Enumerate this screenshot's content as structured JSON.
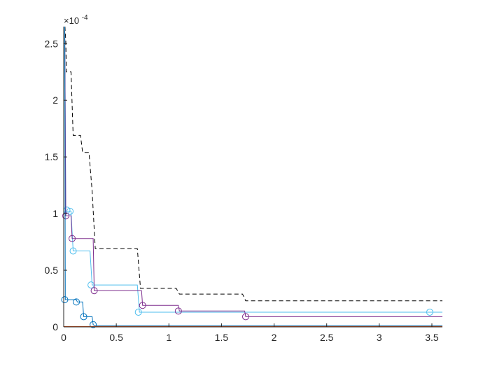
{
  "chart_data": {
    "type": "line",
    "title": "",
    "xlabel": "",
    "ylabel": "",
    "xlim": [
      0,
      3.6
    ],
    "ylim": [
      0,
      2.65
    ],
    "xticks": [
      0,
      0.5,
      1,
      1.5,
      2,
      2.5,
      3,
      3.5
    ],
    "xtick_labels": [
      "0",
      "0.5",
      "1",
      "1.5",
      "2",
      "2.5",
      "3",
      "3.5"
    ],
    "yticks": [
      0,
      0.5,
      1,
      1.5,
      2,
      2.5
    ],
    "ytick_labels": [
      "0",
      "0.5",
      "1",
      "1.5",
      "2",
      "2.5"
    ],
    "y_multiplier": {
      "base": "×10",
      "exponent": "-4"
    },
    "grid": false,
    "legend": "none",
    "series": [
      {
        "style": "dashed",
        "color": "#000000",
        "points": [
          [
            0.012,
            2.65
          ],
          [
            0.02,
            2.52
          ],
          [
            0.025,
            2.25
          ],
          [
            0.07,
            2.25
          ],
          [
            0.09,
            1.69
          ],
          [
            0.16,
            1.69
          ],
          [
            0.18,
            1.54
          ],
          [
            0.24,
            1.54
          ],
          [
            0.27,
            1.2
          ],
          [
            0.3,
            0.69
          ],
          [
            0.7,
            0.69
          ],
          [
            0.73,
            0.34
          ],
          [
            1.07,
            0.34
          ],
          [
            1.1,
            0.29
          ],
          [
            1.7,
            0.29
          ],
          [
            1.73,
            0.23
          ],
          [
            3.6,
            0.23
          ]
        ],
        "markers": []
      },
      {
        "style": "solid",
        "color": "#4DBEEE",
        "points": [
          [
            0.01,
            2.65
          ],
          [
            0.02,
            1.02
          ],
          [
            0.07,
            1.02
          ],
          [
            0.09,
            0.67
          ],
          [
            0.25,
            0.67
          ],
          [
            0.27,
            0.37
          ],
          [
            0.7,
            0.37
          ],
          [
            0.72,
            0.13
          ],
          [
            3.6,
            0.13
          ]
        ],
        "markers": [
          [
            0.03,
            1.03
          ],
          [
            0.06,
            1.02
          ],
          [
            0.09,
            0.67
          ],
          [
            0.26,
            0.37
          ],
          [
            0.71,
            0.13
          ],
          [
            3.48,
            0.13
          ]
        ]
      },
      {
        "style": "solid",
        "color": "#7E2F8E",
        "points": [
          [
            0.01,
            2.65
          ],
          [
            0.02,
            0.98
          ],
          [
            0.07,
            0.98
          ],
          [
            0.08,
            0.78
          ],
          [
            0.28,
            0.78
          ],
          [
            0.29,
            0.32
          ],
          [
            0.74,
            0.32
          ],
          [
            0.75,
            0.19
          ],
          [
            1.09,
            0.19
          ],
          [
            1.1,
            0.14
          ],
          [
            1.72,
            0.14
          ],
          [
            1.73,
            0.09
          ],
          [
            3.6,
            0.09
          ]
        ],
        "markers": [
          [
            0.02,
            0.98
          ],
          [
            0.08,
            0.78
          ],
          [
            0.29,
            0.32
          ],
          [
            0.75,
            0.19
          ],
          [
            1.09,
            0.14
          ],
          [
            1.73,
            0.09
          ]
        ]
      },
      {
        "style": "solid",
        "color": "#0072BD",
        "points": [
          [
            0.01,
            2.65
          ],
          [
            0.015,
            0.24
          ],
          [
            0.12,
            0.24
          ],
          [
            0.13,
            0.22
          ],
          [
            0.18,
            0.22
          ],
          [
            0.19,
            0.09
          ],
          [
            0.27,
            0.09
          ],
          [
            0.28,
            0.02
          ],
          [
            0.3,
            0.01
          ],
          [
            3.6,
            0.01
          ]
        ],
        "markers": [
          [
            0.01,
            0.24
          ],
          [
            0.12,
            0.22
          ],
          [
            0.19,
            0.09
          ],
          [
            0.28,
            0.02
          ]
        ]
      },
      {
        "style": "solid",
        "color": "#D95319",
        "points": [
          [
            0.0,
            0.004
          ],
          [
            3.6,
            0.004
          ]
        ],
        "markers": []
      }
    ]
  }
}
